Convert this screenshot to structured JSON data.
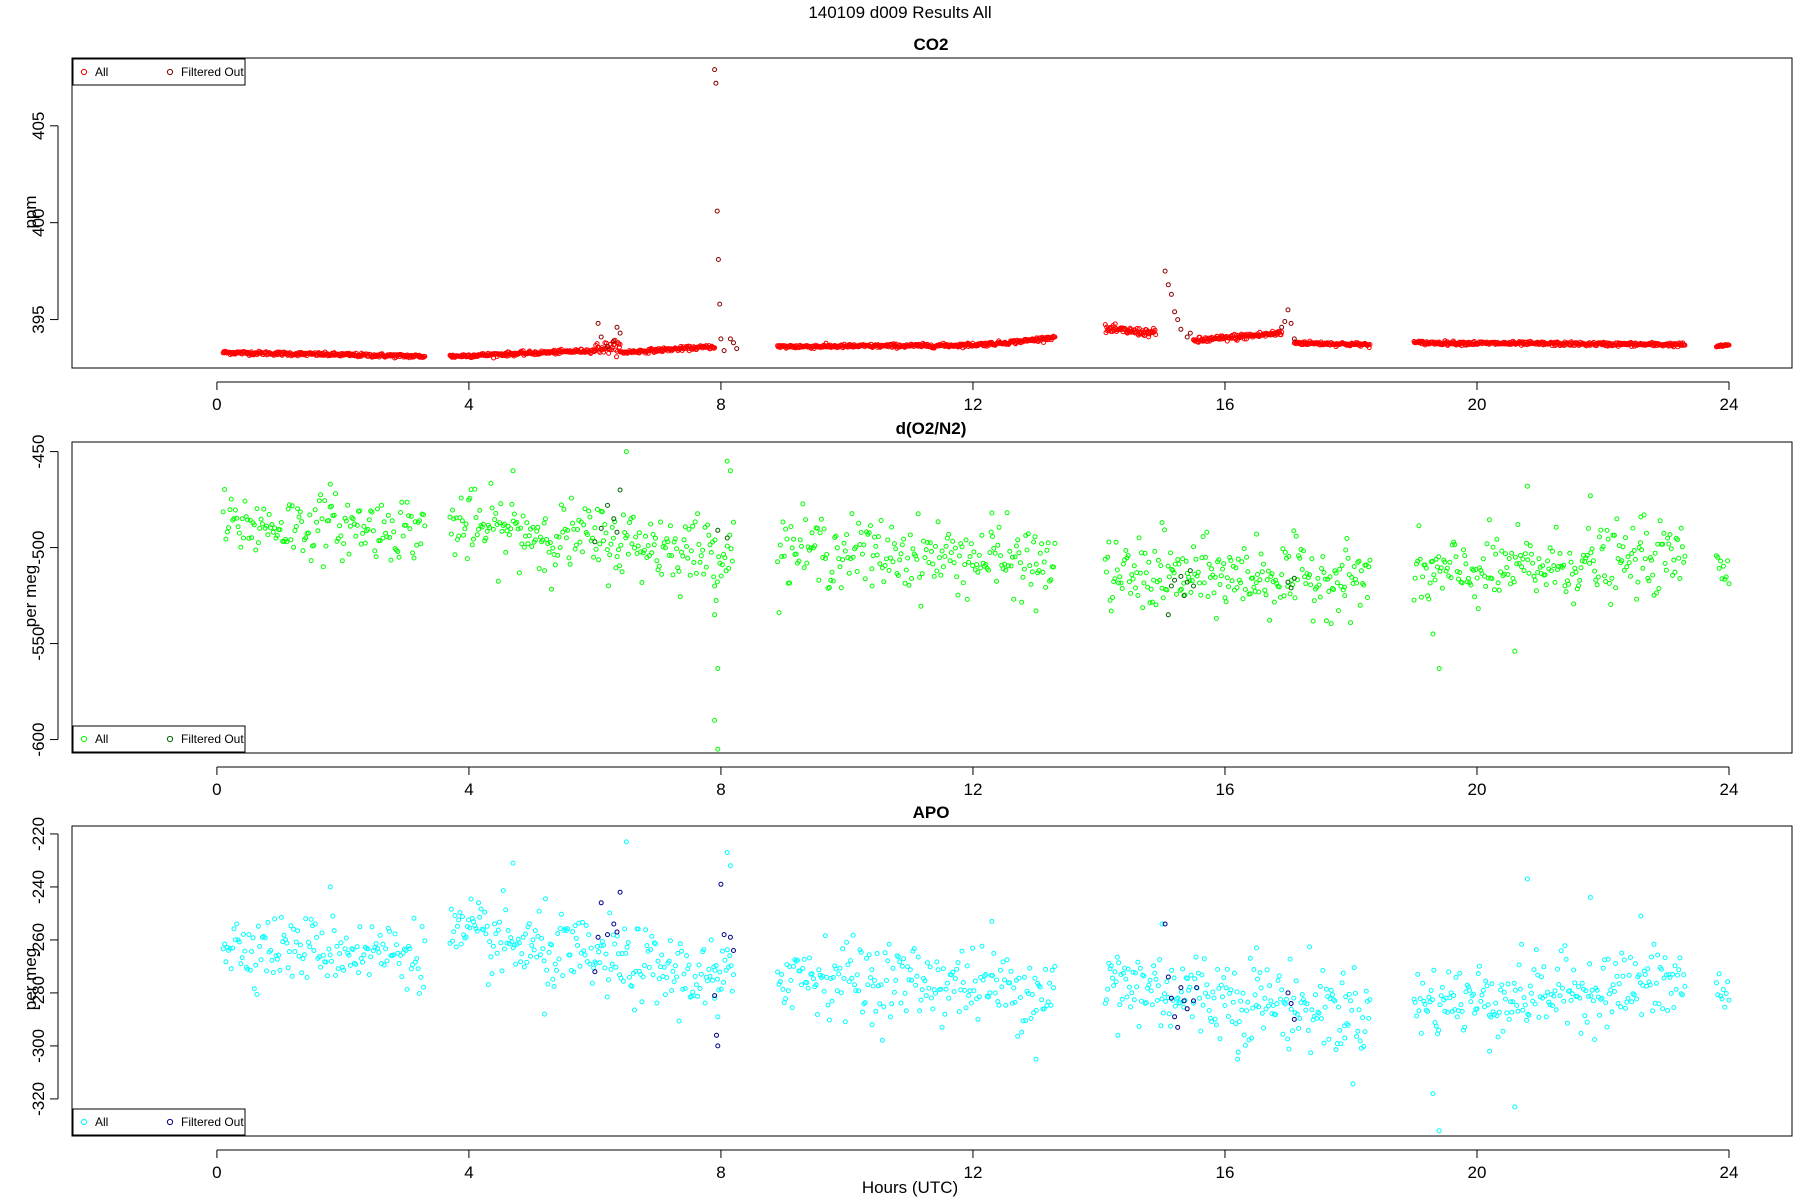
{
  "figure": {
    "title": "140109   d009   Results All",
    "xlabel": "Hours (UTC)"
  },
  "chart_data": [
    {
      "type": "scatter",
      "title": "CO2",
      "ylabel": "ppm",
      "xlabel": "",
      "xlim": [
        -2.3,
        25
      ],
      "ylim": [
        392.5,
        408.5
      ],
      "xticks": [
        "0",
        "4",
        "8",
        "12",
        "16",
        "20",
        "24"
      ],
      "yticks": [
        "395",
        "400",
        "405"
      ],
      "legend": {
        "position": "top-left",
        "entries": [
          "All",
          "Filtered Out"
        ]
      },
      "colors": {
        "All": "#ff0000",
        "Filtered Out": "#8b0000"
      },
      "series": [
        {
          "name": "All",
          "segments": [
            {
              "x_start": 0.1,
              "x_end": 3.3,
              "y_start": 393.3,
              "y_end": 393.1,
              "noise": 0.05,
              "pattern": "flat"
            },
            {
              "x_start": 3.7,
              "x_end": 6.0,
              "y_start": 393.1,
              "y_end": 393.4,
              "noise": 0.05,
              "pattern": "flat"
            },
            {
              "x_start": 6.0,
              "x_end": 6.4,
              "y_start": 393.5,
              "y_end": 393.6,
              "noise": 0.15,
              "pattern": "flat"
            },
            {
              "x_start": 6.4,
              "x_end": 7.9,
              "y_start": 393.3,
              "y_end": 393.6,
              "noise": 0.05,
              "pattern": "flat"
            },
            {
              "x_start": 8.9,
              "x_end": 13.3,
              "y_start": 393.6,
              "y_end": 394.1,
              "noise": 0.05,
              "pattern": "rise-end"
            },
            {
              "x_start": 14.1,
              "x_end": 14.9,
              "y_start": 394.5,
              "y_end": 394.3,
              "noise": 0.1,
              "pattern": "flat"
            },
            {
              "x_start": 15.5,
              "x_end": 16.9,
              "y_start": 393.9,
              "y_end": 394.3,
              "noise": 0.08,
              "pattern": "flat"
            },
            {
              "x_start": 17.1,
              "x_end": 18.3,
              "y_start": 393.8,
              "y_end": 393.7,
              "noise": 0.05,
              "pattern": "flat"
            },
            {
              "x_start": 19.0,
              "x_end": 23.3,
              "y_start": 393.8,
              "y_end": 393.7,
              "noise": 0.05,
              "pattern": "flat"
            },
            {
              "x_start": 23.8,
              "x_end": 24.0,
              "y_start": 393.6,
              "y_end": 393.7,
              "noise": 0.03,
              "pattern": "flat"
            }
          ]
        },
        {
          "name": "Filtered Out",
          "points": [
            [
              6.05,
              394.8
            ],
            [
              6.1,
              394.1
            ],
            [
              6.2,
              393.6
            ],
            [
              6.3,
              393.9
            ],
            [
              6.35,
              394.6
            ],
            [
              6.4,
              394.3
            ],
            [
              7.9,
              407.9
            ],
            [
              7.92,
              407.2
            ],
            [
              7.94,
              400.6
            ],
            [
              7.96,
              398.1
            ],
            [
              7.98,
              395.8
            ],
            [
              8.0,
              394.0
            ],
            [
              8.05,
              393.4
            ],
            [
              8.15,
              394.0
            ],
            [
              8.2,
              393.8
            ],
            [
              8.25,
              393.5
            ],
            [
              15.05,
              397.5
            ],
            [
              15.1,
              396.8
            ],
            [
              15.15,
              396.3
            ],
            [
              15.2,
              395.4
            ],
            [
              15.25,
              395.0
            ],
            [
              15.3,
              394.5
            ],
            [
              15.4,
              394.1
            ],
            [
              15.45,
              394.3
            ],
            [
              16.9,
              394.6
            ],
            [
              16.95,
              394.9
            ],
            [
              17.0,
              395.5
            ],
            [
              17.05,
              394.8
            ],
            [
              17.1,
              394.0
            ]
          ]
        }
      ]
    },
    {
      "type": "scatter",
      "title": "d(O2/N2)",
      "ylabel": "per meg",
      "xlabel": "",
      "xlim": [
        -2.3,
        25
      ],
      "ylim": [
        -607,
        -445
      ],
      "xticks": [
        "0",
        "4",
        "8",
        "12",
        "16",
        "20",
        "24"
      ],
      "yticks": [
        "-450",
        "-500",
        "-550",
        "-600"
      ],
      "legend": {
        "position": "bottom-left",
        "entries": [
          "All",
          "Filtered Out"
        ]
      },
      "colors": {
        "All": "#00ff00",
        "Filtered Out": "#006400"
      },
      "series": [
        {
          "name": "All",
          "segments": [
            {
              "x_start": 0.1,
              "x_end": 3.3,
              "y_start": -488,
              "y_end": -490,
              "noise": 8,
              "n": 150
            },
            {
              "x_start": 3.7,
              "x_end": 8.2,
              "y_start": -488,
              "y_end": -503,
              "noise": 9,
              "n": 230
            },
            {
              "x_start": 8.9,
              "x_end": 13.3,
              "y_start": -500,
              "y_end": -508,
              "noise": 9,
              "n": 210
            },
            {
              "x_start": 14.1,
              "x_end": 18.3,
              "y_start": -515,
              "y_end": -516,
              "noise": 9,
              "n": 220
            },
            {
              "x_start": 19.0,
              "x_end": 23.3,
              "y_start": -515,
              "y_end": -505,
              "noise": 9,
              "n": 220
            },
            {
              "x_start": 23.8,
              "x_end": 24.0,
              "y_start": -505,
              "y_end": -508,
              "noise": 8,
              "n": 10
            }
          ],
          "extra_points": [
            [
              1.8,
              -467
            ],
            [
              4.7,
              -460
            ],
            [
              6.5,
              -450
            ],
            [
              8.1,
              -455
            ],
            [
              8.15,
              -460
            ],
            [
              7.9,
              -535
            ],
            [
              7.95,
              -563
            ],
            [
              7.9,
              -590
            ],
            [
              7.95,
              -605
            ],
            [
              7.9,
              -520
            ],
            [
              12.3,
              -482
            ],
            [
              13.0,
              -533
            ],
            [
              15.0,
              -487
            ],
            [
              19.4,
              -563
            ],
            [
              19.3,
              -545
            ],
            [
              20.6,
              -554
            ],
            [
              20.8,
              -468
            ],
            [
              21.8,
              -473
            ],
            [
              16.5,
              -493
            ],
            [
              22.6,
              -484
            ],
            [
              5.2,
              -512
            ],
            [
              10.4,
              -520
            ],
            [
              17.9,
              -525
            ]
          ]
        },
        {
          "name": "Filtered Out",
          "points": [
            [
              6.0,
              -497
            ],
            [
              6.1,
              -490
            ],
            [
              6.2,
              -478
            ],
            [
              6.3,
              -485
            ],
            [
              6.35,
              -492
            ],
            [
              6.4,
              -470
            ],
            [
              7.95,
              -491
            ],
            [
              8.1,
              -495
            ],
            [
              15.1,
              -535
            ],
            [
              15.15,
              -520
            ],
            [
              15.2,
              -517
            ],
            [
              15.3,
              -515
            ],
            [
              15.35,
              -525
            ],
            [
              15.4,
              -518
            ],
            [
              15.45,
              -512
            ],
            [
              15.5,
              -520
            ],
            [
              17.0,
              -518
            ],
            [
              17.05,
              -521
            ],
            [
              17.1,
              -516
            ]
          ]
        }
      ]
    },
    {
      "type": "scatter",
      "title": "APO",
      "ylabel": "per meg",
      "xlabel": "Hours (UTC)",
      "xlim": [
        -2.3,
        25
      ],
      "ylim": [
        -334,
        -217
      ],
      "xticks": [
        "0",
        "4",
        "8",
        "12",
        "16",
        "20",
        "24"
      ],
      "yticks": [
        "-220",
        "-240",
        "-260",
        "-280",
        "-300",
        "-320"
      ],
      "legend": {
        "position": "bottom-left",
        "entries": [
          "All",
          "Filtered Out"
        ]
      },
      "colors": {
        "All": "#00ffff",
        "Filtered Out": "#00008b"
      },
      "series": [
        {
          "name": "All",
          "segments": [
            {
              "x_start": 0.1,
              "x_end": 3.3,
              "y_start": -262,
              "y_end": -265,
              "noise": 6,
              "n": 150
            },
            {
              "x_start": 3.7,
              "x_end": 8.2,
              "y_start": -258,
              "y_end": -276,
              "noise": 7,
              "n": 230
            },
            {
              "x_start": 8.9,
              "x_end": 13.3,
              "y_start": -272,
              "y_end": -279,
              "noise": 7,
              "n": 210
            },
            {
              "x_start": 14.1,
              "x_end": 18.3,
              "y_start": -276,
              "y_end": -288,
              "noise": 8,
              "n": 220
            },
            {
              "x_start": 19.0,
              "x_end": 23.3,
              "y_start": -284,
              "y_end": -276,
              "noise": 7,
              "n": 220
            },
            {
              "x_start": 23.8,
              "x_end": 24.0,
              "y_start": -276,
              "y_end": -286,
              "noise": 6,
              "n": 10
            }
          ],
          "extra_points": [
            [
              1.8,
              -240
            ],
            [
              4.7,
              -231
            ],
            [
              6.5,
              -223
            ],
            [
              8.1,
              -227
            ],
            [
              8.15,
              -232
            ],
            [
              7.9,
              -282
            ],
            [
              7.95,
              -289
            ],
            [
              13.0,
              -305
            ],
            [
              12.3,
              -253
            ],
            [
              19.4,
              -332
            ],
            [
              19.3,
              -318
            ],
            [
              20.6,
              -323
            ],
            [
              20.8,
              -237
            ],
            [
              21.8,
              -244
            ],
            [
              16.5,
              -263
            ],
            [
              22.6,
              -251
            ],
            [
              5.2,
              -288
            ],
            [
              10.4,
              -292
            ],
            [
              17.9,
              -297
            ],
            [
              15.0,
              -254
            ],
            [
              16.2,
              -305
            ],
            [
              14.3,
              -296
            ],
            [
              20.2,
              -302
            ]
          ]
        },
        {
          "name": "Filtered Out",
          "points": [
            [
              6.0,
              -272
            ],
            [
              6.05,
              -259
            ],
            [
              6.1,
              -246
            ],
            [
              6.2,
              -258
            ],
            [
              6.3,
              -254
            ],
            [
              6.35,
              -257
            ],
            [
              6.4,
              -242
            ],
            [
              7.9,
              -281
            ],
            [
              7.93,
              -296
            ],
            [
              7.95,
              -300
            ],
            [
              8.0,
              -239
            ],
            [
              8.05,
              -258
            ],
            [
              8.15,
              -259
            ],
            [
              8.2,
              -264
            ],
            [
              15.05,
              -254
            ],
            [
              15.1,
              -274
            ],
            [
              15.15,
              -282
            ],
            [
              15.2,
              -289
            ],
            [
              15.25,
              -293
            ],
            [
              15.3,
              -278
            ],
            [
              15.35,
              -283
            ],
            [
              15.4,
              -286
            ],
            [
              15.5,
              -283
            ],
            [
              15.55,
              -278
            ],
            [
              17.0,
              -280
            ],
            [
              17.05,
              -284
            ],
            [
              17.1,
              -290
            ]
          ]
        }
      ]
    }
  ]
}
